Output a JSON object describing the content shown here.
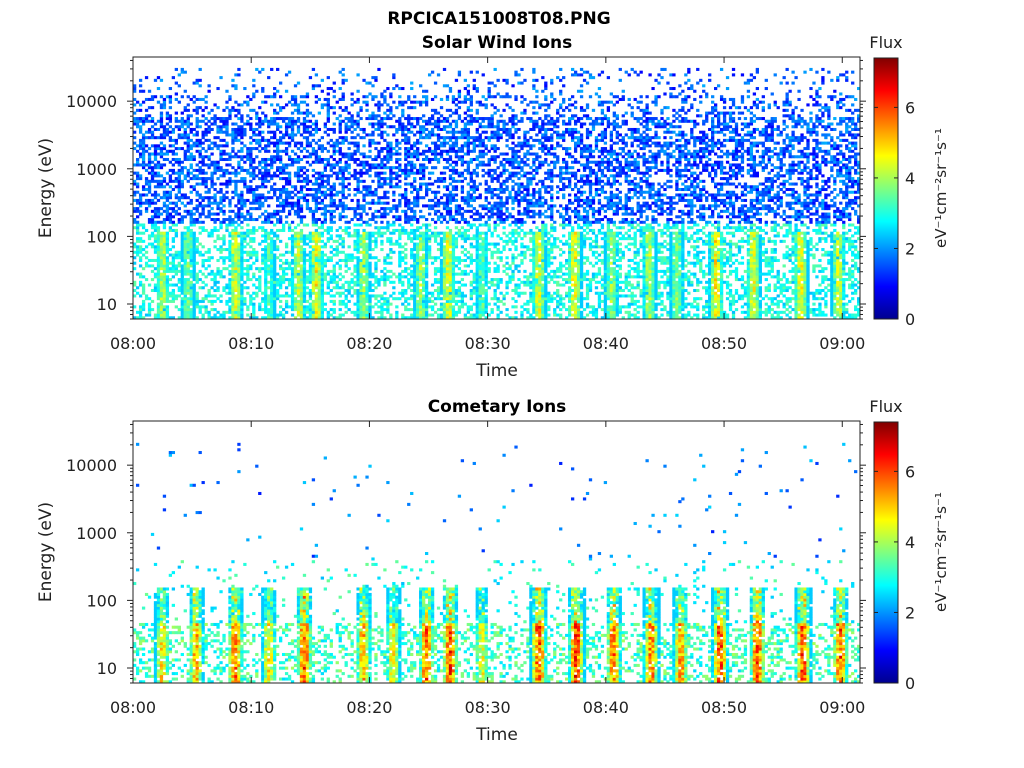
{
  "figure_title": "RPCICA151008T08.PNG",
  "chart_data": [
    {
      "type": "heatmap",
      "title": "Solar Wind Ions",
      "xlabel": "Time",
      "ylabel": "Energy (eV)",
      "x_tick_labels": [
        "08:00",
        "08:10",
        "08:20",
        "08:30",
        "08:40",
        "08:50",
        "09:00"
      ],
      "x_range": [
        "08:00",
        "09:01:30"
      ],
      "y_scale": "log",
      "y_tick_values": [
        10,
        100,
        1000,
        10000
      ],
      "y_tick_labels": [
        "10",
        "100",
        "1000",
        "10000"
      ],
      "y_range": [
        6,
        45000
      ],
      "colorbar": {
        "title": "Flux",
        "label": "eV⁻¹cm⁻²sr⁻¹s⁻¹",
        "tick_labels": [
          "0",
          "2",
          "4",
          "6"
        ],
        "range": [
          0,
          7.4
        ],
        "colormap": "jet"
      },
      "description": "Scattered low-flux (1–2) counts from ~200 eV to 30000 eV; flux 3–5.5 streaks below ~100 eV",
      "bursts": [
        {
          "time": "08:02:30",
          "flux": 4.6
        },
        {
          "time": "08:04:40",
          "flux": 4.2
        },
        {
          "time": "08:08:40",
          "flux": 5.0
        },
        {
          "time": "08:11:30",
          "flux": 3.8
        },
        {
          "time": "08:14:00",
          "flux": 4.8
        },
        {
          "time": "08:15:30",
          "flux": 5.2
        },
        {
          "time": "08:19:30",
          "flux": 4.6
        },
        {
          "time": "08:24:20",
          "flux": 4.5
        },
        {
          "time": "08:26:40",
          "flux": 5.1
        },
        {
          "time": "08:29:30",
          "flux": 3.9
        },
        {
          "time": "08:34:20",
          "flux": 5.0
        },
        {
          "time": "08:37:20",
          "flux": 5.2
        },
        {
          "time": "08:40:30",
          "flux": 4.4
        },
        {
          "time": "08:43:40",
          "flux": 4.6
        },
        {
          "time": "08:46:00",
          "flux": 4.3
        },
        {
          "time": "08:49:20",
          "flux": 5.3
        },
        {
          "time": "08:52:30",
          "flux": 5.0
        },
        {
          "time": "08:56:30",
          "flux": 5.1
        },
        {
          "time": "08:59:40",
          "flux": 4.8
        }
      ]
    },
    {
      "type": "heatmap",
      "title": "Cometary Ions",
      "xlabel": "Time",
      "ylabel": "Energy (eV)",
      "x_tick_labels": [
        "08:00",
        "08:10",
        "08:20",
        "08:30",
        "08:40",
        "08:50",
        "09:00"
      ],
      "x_range": [
        "08:00",
        "09:01:30"
      ],
      "y_scale": "log",
      "y_tick_values": [
        10,
        100,
        1000,
        10000
      ],
      "y_tick_labels": [
        "10",
        "100",
        "1000",
        "10000"
      ],
      "y_range": [
        6,
        45000
      ],
      "colorbar": {
        "title": "Flux",
        "label": "eV⁻¹cm⁻²sr⁻¹s⁻¹",
        "tick_labels": [
          "0",
          "2",
          "4",
          "6"
        ],
        "range": [
          0,
          7.4
        ],
        "colormap": "jet"
      },
      "description": "Intense cometary ion bursts (flux up to ~7) below ~150 eV, sparse counts above",
      "bursts": [
        {
          "time": "08:02:30",
          "flux": 5.6
        },
        {
          "time": "08:05:20",
          "flux": 6.0
        },
        {
          "time": "08:08:40",
          "flux": 6.6
        },
        {
          "time": "08:11:30",
          "flux": 5.5
        },
        {
          "time": "08:14:30",
          "flux": 6.8
        },
        {
          "time": "08:19:30",
          "flux": 6.0
        },
        {
          "time": "08:22:00",
          "flux": 5.4
        },
        {
          "time": "08:24:50",
          "flux": 6.6
        },
        {
          "time": "08:26:50",
          "flux": 6.9
        },
        {
          "time": "08:29:30",
          "flux": 5.2
        },
        {
          "time": "08:34:20",
          "flux": 6.9
        },
        {
          "time": "08:37:30",
          "flux": 7.0
        },
        {
          "time": "08:40:40",
          "flux": 6.5
        },
        {
          "time": "08:43:50",
          "flux": 6.4
        },
        {
          "time": "08:46:20",
          "flux": 6.2
        },
        {
          "time": "08:49:40",
          "flux": 6.9
        },
        {
          "time": "08:52:50",
          "flux": 6.8
        },
        {
          "time": "08:56:40",
          "flux": 6.9
        },
        {
          "time": "08:59:50",
          "flux": 6.8
        }
      ]
    }
  ]
}
